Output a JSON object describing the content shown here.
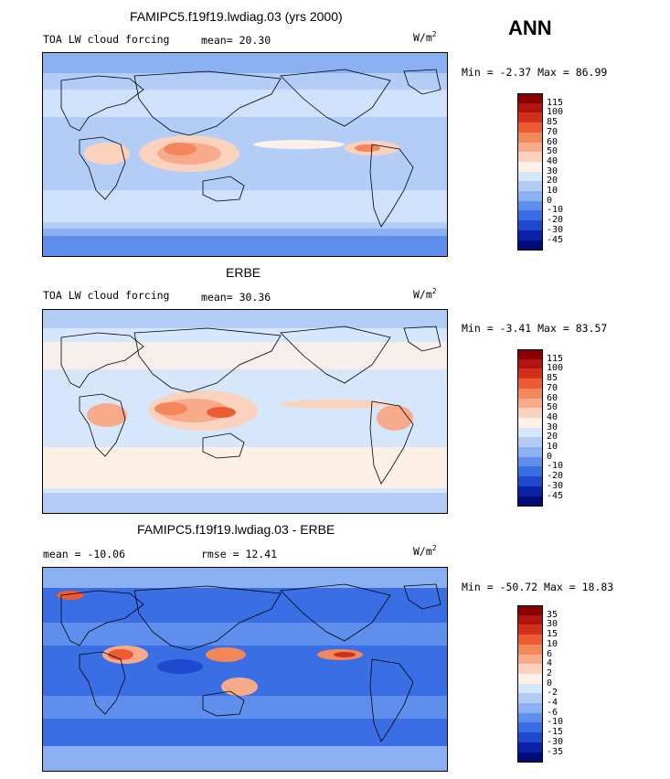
{
  "season": "ANN",
  "panels": [
    {
      "title": "FAMIPC5.f19f19.lwdiag.03 (yrs 2000)",
      "left_label": "TOA LW cloud forcing",
      "stat_label": "mean=",
      "stat_value": "20.30",
      "units": "W/m",
      "units_sup": "2",
      "min_label": "Min =",
      "min_value": "-2.37",
      "max_label": "Max =",
      "max_value": "86.99",
      "levels": [
        "115",
        "100",
        "85",
        "70",
        "60",
        "50",
        "40",
        "30",
        "20",
        "10",
        "0",
        "-10",
        "-20",
        "-30",
        "-45"
      ],
      "colors": [
        "#8b0000",
        "#b2140f",
        "#d42f1b",
        "#ee5a32",
        "#f4865c",
        "#f8ab8a",
        "#fbd2bd",
        "#fdf0e6",
        "#d6e6fb",
        "#b3cdf7",
        "#8cb1f2",
        "#5f8eec",
        "#3a6ee4",
        "#2049cf",
        "#0a22a8",
        "#000d78"
      ]
    },
    {
      "title": "ERBE",
      "left_label": "TOA LW cloud forcing",
      "stat_label": "mean=",
      "stat_value": "30.36",
      "units": "W/m",
      "units_sup": "2",
      "min_label": "Min =",
      "min_value": "-3.41",
      "max_label": "Max =",
      "max_value": "83.57",
      "levels": [
        "115",
        "100",
        "85",
        "70",
        "60",
        "50",
        "40",
        "30",
        "20",
        "10",
        "0",
        "-10",
        "-20",
        "-30",
        "-45"
      ],
      "colors": [
        "#8b0000",
        "#b2140f",
        "#d42f1b",
        "#ee5a32",
        "#f4865c",
        "#f8ab8a",
        "#fbd2bd",
        "#fdf0e6",
        "#d6e6fb",
        "#b3cdf7",
        "#8cb1f2",
        "#5f8eec",
        "#3a6ee4",
        "#2049cf",
        "#0a22a8",
        "#000d78"
      ]
    },
    {
      "title": "FAMIPC5.f19f19.lwdiag.03 - ERBE",
      "left_label": "mean = -10.06",
      "stat_label": "rmse =",
      "stat_value": "12.41",
      "units": "W/m",
      "units_sup": "2",
      "min_label": "Min =",
      "min_value": "-50.72",
      "max_label": "Max =",
      "max_value": "18.83",
      "levels": [
        "35",
        "30",
        "15",
        "10",
        "6",
        "4",
        "2",
        "0",
        "-2",
        "-4",
        "-6",
        "-10",
        "-15",
        "-30",
        "-35"
      ],
      "colors": [
        "#8b0000",
        "#b2140f",
        "#d42f1b",
        "#ee5a32",
        "#f4865c",
        "#f8ab8a",
        "#fbd2bd",
        "#fdf0e6",
        "#d6e6fb",
        "#b3cdf7",
        "#8cb1f2",
        "#5f8eec",
        "#3a6ee4",
        "#2049cf",
        "#0a22a8",
        "#000d78"
      ]
    }
  ]
}
